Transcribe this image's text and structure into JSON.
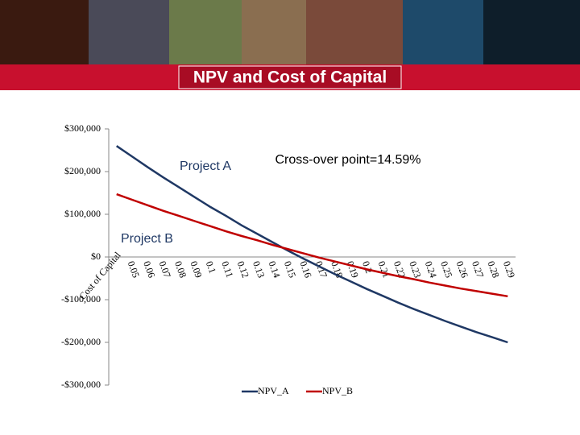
{
  "slide": {
    "title": "NPV and Cost of Capital"
  },
  "chart_data": {
    "type": "line",
    "x_label": "Cost of Capital",
    "categories": [
      null,
      "0.05",
      "0.06",
      "0.07",
      "0.08",
      "0.09",
      "0.1",
      "0.11",
      "0.12",
      "0.13",
      "0.14",
      "0.15",
      "0.16",
      "0.17",
      "0.18",
      "0.19",
      "0.2",
      "0.21",
      "0.22",
      "0.23",
      "0.24",
      "0.25",
      "0.26",
      "0.27",
      "0.28",
      "0.29"
    ],
    "series": [
      {
        "name": "NPV_A",
        "color": "#1f3864",
        "values": [
          260000,
          235000,
          210000,
          186000,
          163000,
          140000,
          117000,
          96000,
          74000,
          54000,
          34000,
          14000,
          -5000,
          -23000,
          -41000,
          -58000,
          -75000,
          -91000,
          -107000,
          -122000,
          -136000,
          -150000,
          -163000,
          -176000,
          -188000,
          -200000
        ]
      },
      {
        "name": "NPV_B",
        "color": "#c00000",
        "values": [
          147000,
          134000,
          121000,
          108000,
          96000,
          84000,
          72000,
          60000,
          49000,
          39000,
          28000,
          18000,
          8000,
          -2000,
          -11000,
          -20000,
          -29000,
          -37000,
          -45000,
          -52000,
          -60000,
          -67000,
          -74000,
          -80000,
          -86000,
          -92000
        ]
      }
    ],
    "ylim": [
      -300000,
      300000
    ],
    "yticks": [
      {
        "value": 300000,
        "label": "$300,000"
      },
      {
        "value": 200000,
        "label": "$200,000"
      },
      {
        "value": 100000,
        "label": "$100,000"
      },
      {
        "value": 0,
        "label": "$0"
      },
      {
        "value": -100000,
        "label": "-$100,000"
      },
      {
        "value": -200000,
        "label": "-$200,000"
      },
      {
        "value": -300000,
        "label": "-$300,000"
      }
    ],
    "annotations": [
      "Project A",
      "Project B",
      "Cross-over point=14.59%"
    ],
    "legend": "bottom"
  }
}
